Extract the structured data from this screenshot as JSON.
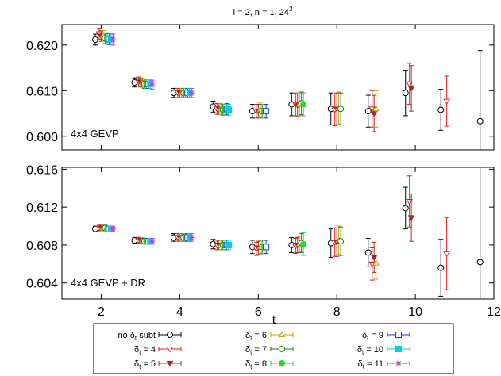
{
  "chart_data": [
    {
      "type": "scatter",
      "panel": "top",
      "title": "l = 2, n = 1, 24",
      "title_sup": "3",
      "label": "4x4 GEVP",
      "xlim": [
        1,
        12
      ],
      "ylim": [
        0.597,
        0.6245
      ],
      "yticks": [
        0.6,
        0.61,
        0.62
      ],
      "ytick_labels": [
        "0.600",
        "0.610",
        "0.620"
      ],
      "grid": false,
      "series": [
        {
          "key": "s0",
          "points": [
            [
              1.85,
              0.6212,
              0.0012
            ],
            [
              2.85,
              0.6118,
              0.001
            ],
            [
              3.85,
              0.6095,
              0.001
            ],
            [
              4.85,
              0.6065,
              0.0012
            ],
            [
              5.85,
              0.6055,
              0.0015
            ],
            [
              6.85,
              0.607,
              0.0025
            ],
            [
              7.85,
              0.606,
              0.0035
            ],
            [
              8.8,
              0.6055,
              0.0035
            ],
            [
              9.75,
              0.6095,
              0.005
            ],
            [
              10.65,
              0.6058,
              0.0045
            ],
            [
              11.65,
              0.6033,
              0.0155
            ]
          ]
        },
        {
          "key": "s4",
          "points": [
            [
              1.95,
              0.6225,
              0.0012
            ],
            [
              2.95,
              0.612,
              0.001
            ],
            [
              3.95,
              0.6095,
              0.001
            ],
            [
              4.95,
              0.606,
              0.0012
            ],
            [
              5.95,
              0.6055,
              0.0015
            ],
            [
              6.95,
              0.607,
              0.0025
            ],
            [
              7.95,
              0.6058,
              0.0035
            ],
            [
              8.9,
              0.606,
              0.004
            ],
            [
              9.85,
              0.6115,
              0.0045
            ],
            [
              10.8,
              0.6077,
              0.0055
            ]
          ]
        },
        {
          "key": "s5",
          "points": [
            [
              2.0,
              0.622,
              0.0012
            ],
            [
              3.0,
              0.6118,
              0.001
            ],
            [
              4.0,
              0.6095,
              0.001
            ],
            [
              5.0,
              0.606,
              0.0012
            ],
            [
              6.0,
              0.6055,
              0.0015
            ],
            [
              7.0,
              0.6068,
              0.0025
            ],
            [
              8.0,
              0.606,
              0.0035
            ],
            [
              8.95,
              0.605,
              0.004
            ],
            [
              9.9,
              0.6105,
              0.005
            ]
          ]
        },
        {
          "key": "s6",
          "points": [
            [
              2.05,
              0.622,
              0.0012
            ],
            [
              3.05,
              0.6117,
              0.001
            ],
            [
              4.05,
              0.6095,
              0.001
            ],
            [
              5.05,
              0.606,
              0.0012
            ],
            [
              6.05,
              0.6058,
              0.0015
            ],
            [
              7.05,
              0.607,
              0.0025
            ],
            [
              8.05,
              0.6062,
              0.0035
            ],
            [
              9.0,
              0.606,
              0.004
            ]
          ]
        },
        {
          "key": "s7",
          "points": [
            [
              2.1,
              0.6215,
              0.0012
            ],
            [
              3.1,
              0.6115,
              0.001
            ],
            [
              4.1,
              0.6095,
              0.001
            ],
            [
              5.1,
              0.6058,
              0.0012
            ],
            [
              6.1,
              0.6055,
              0.0015
            ],
            [
              7.1,
              0.6072,
              0.0025
            ],
            [
              8.1,
              0.606,
              0.0035
            ]
          ]
        },
        {
          "key": "s8",
          "points": [
            [
              2.15,
              0.6215,
              0.0012
            ],
            [
              3.15,
              0.6115,
              0.001
            ],
            [
              4.15,
              0.6095,
              0.001
            ],
            [
              5.15,
              0.6058,
              0.0012
            ],
            [
              6.15,
              0.6055,
              0.0015
            ],
            [
              7.15,
              0.607,
              0.0025
            ]
          ]
        },
        {
          "key": "s9",
          "points": [
            [
              2.2,
              0.6213,
              0.0012
            ],
            [
              3.2,
              0.6115,
              0.001
            ],
            [
              4.2,
              0.6095,
              0.001
            ],
            [
              5.2,
              0.606,
              0.0012
            ],
            [
              6.2,
              0.6055,
              0.0015
            ]
          ]
        },
        {
          "key": "s10",
          "points": [
            [
              2.25,
              0.6213,
              0.0012
            ],
            [
              3.25,
              0.6115,
              0.001
            ],
            [
              4.25,
              0.6095,
              0.001
            ],
            [
              5.25,
              0.6058,
              0.0012
            ]
          ]
        },
        {
          "key": "s11",
          "points": [
            [
              2.3,
              0.6212,
              0.0012
            ],
            [
              3.3,
              0.6113,
              0.001
            ],
            [
              4.3,
              0.6095,
              0.001
            ]
          ]
        }
      ]
    },
    {
      "type": "scatter",
      "panel": "bottom",
      "label": "4x4 GEVP + DR",
      "xlabel": "t",
      "xlim": [
        1,
        12
      ],
      "ylim": [
        0.6023,
        0.6162
      ],
      "xticks": [
        2,
        4,
        6,
        8,
        10,
        12
      ],
      "xtick_labels": [
        "2",
        "4",
        "6",
        "8",
        "10",
        "12"
      ],
      "yticks": [
        0.604,
        0.608,
        0.612,
        0.616
      ],
      "ytick_labels": [
        "0.604",
        "0.608",
        "0.612",
        "0.616"
      ],
      "grid": false,
      "series": [
        {
          "key": "s0",
          "points": [
            [
              1.85,
              0.6097,
              0.0003
            ],
            [
              2.85,
              0.6085,
              0.0003
            ],
            [
              3.85,
              0.6088,
              0.0004
            ],
            [
              4.85,
              0.6081,
              0.0005
            ],
            [
              5.85,
              0.6078,
              0.0007
            ],
            [
              6.85,
              0.608,
              0.0008
            ],
            [
              7.85,
              0.6082,
              0.0015
            ],
            [
              8.8,
              0.6072,
              0.0015
            ],
            [
              9.75,
              0.6119,
              0.0022
            ],
            [
              10.65,
              0.6056,
              0.003
            ],
            [
              11.65,
              0.6062,
              0.01
            ]
          ]
        },
        {
          "key": "s4",
          "points": [
            [
              1.95,
              0.6098,
              0.0003
            ],
            [
              2.95,
              0.6085,
              0.0003
            ],
            [
              3.95,
              0.6088,
              0.0004
            ],
            [
              4.95,
              0.608,
              0.0005
            ],
            [
              5.95,
              0.6076,
              0.0007
            ],
            [
              6.95,
              0.6079,
              0.0008
            ],
            [
              7.95,
              0.6083,
              0.0015
            ],
            [
              8.9,
              0.606,
              0.0017
            ],
            [
              9.85,
              0.6126,
              0.0027
            ],
            [
              10.8,
              0.6071,
              0.0038
            ]
          ]
        },
        {
          "key": "s5",
          "points": [
            [
              2.0,
              0.6098,
              0.0003
            ],
            [
              3.0,
              0.6085,
              0.0003
            ],
            [
              4.0,
              0.6088,
              0.0004
            ],
            [
              5.0,
              0.608,
              0.0005
            ],
            [
              6.0,
              0.6077,
              0.0007
            ],
            [
              7.0,
              0.608,
              0.0008
            ],
            [
              8.0,
              0.6083,
              0.0015
            ],
            [
              8.95,
              0.6067,
              0.0016
            ],
            [
              9.9,
              0.6109,
              0.0025
            ]
          ]
        },
        {
          "key": "s6",
          "points": [
            [
              2.05,
              0.6098,
              0.0003
            ],
            [
              3.05,
              0.6085,
              0.0003
            ],
            [
              4.05,
              0.6088,
              0.0004
            ],
            [
              5.05,
              0.608,
              0.0005
            ],
            [
              6.05,
              0.6078,
              0.0007
            ],
            [
              7.05,
              0.6081,
              0.0008
            ],
            [
              8.05,
              0.6085,
              0.0015
            ],
            [
              9.0,
              0.6061,
              0.0017
            ]
          ]
        },
        {
          "key": "s7",
          "points": [
            [
              2.1,
              0.6098,
              0.0003
            ],
            [
              3.1,
              0.6084,
              0.0003
            ],
            [
              4.1,
              0.6088,
              0.0004
            ],
            [
              5.1,
              0.608,
              0.0005
            ],
            [
              6.1,
              0.6078,
              0.0007
            ],
            [
              7.1,
              0.6082,
              0.001
            ],
            [
              8.1,
              0.6084,
              0.0015
            ]
          ]
        },
        {
          "key": "s8",
          "points": [
            [
              2.15,
              0.6097,
              0.0003
            ],
            [
              3.15,
              0.6084,
              0.0003
            ],
            [
              4.15,
              0.6088,
              0.0004
            ],
            [
              5.15,
              0.608,
              0.0005
            ],
            [
              6.15,
              0.6078,
              0.0007
            ],
            [
              7.15,
              0.6081,
              0.0012
            ]
          ]
        },
        {
          "key": "s9",
          "points": [
            [
              2.2,
              0.6097,
              0.0003
            ],
            [
              3.2,
              0.6084,
              0.0003
            ],
            [
              4.2,
              0.6088,
              0.0004
            ],
            [
              5.2,
              0.608,
              0.0005
            ],
            [
              6.2,
              0.6078,
              0.0007
            ]
          ]
        },
        {
          "key": "s10",
          "points": [
            [
              2.25,
              0.6097,
              0.0003
            ],
            [
              3.25,
              0.6084,
              0.0003
            ],
            [
              4.25,
              0.6088,
              0.0004
            ],
            [
              5.25,
              0.608,
              0.0005
            ]
          ]
        },
        {
          "key": "s11",
          "points": [
            [
              2.3,
              0.6097,
              0.0003
            ],
            [
              3.3,
              0.6084,
              0.0003
            ],
            [
              4.3,
              0.6088,
              0.0004
            ]
          ]
        }
      ]
    }
  ],
  "legend": {
    "placement": "bottom",
    "entries": [
      {
        "key": "s0",
        "text": "no δ",
        "sub": "t",
        "suffix": " subt",
        "color": "#000000",
        "marker": "circle-open"
      },
      {
        "key": "s4",
        "text": "δ",
        "sub": "t",
        "suffix": " = 4",
        "color": "#e31a1c",
        "marker": "tri-down-open"
      },
      {
        "key": "s5",
        "text": "δ",
        "sub": "t",
        "suffix": " = 5",
        "color": "#a52a2a",
        "marker": "tri-down-filled"
      },
      {
        "key": "s6",
        "text": "δ",
        "sub": "t",
        "suffix": " = 6",
        "color": "#c8a000",
        "marker": "tri-up-open"
      },
      {
        "key": "s7",
        "text": "δ",
        "sub": "t",
        "suffix": " = 7",
        "color": "#1b7a1b",
        "marker": "circle-open"
      },
      {
        "key": "s8",
        "text": "δ",
        "sub": "t",
        "suffix": " = 8",
        "color": "#22dd22",
        "marker": "circle-filled"
      },
      {
        "key": "s9",
        "text": "δ",
        "sub": "t",
        "suffix": " = 9",
        "color": "#1f3fcf",
        "marker": "square-open"
      },
      {
        "key": "s10",
        "text": "δ",
        "sub": "t",
        "suffix": " = 10",
        "color": "#00d0e0",
        "marker": "square-filled"
      },
      {
        "key": "s11",
        "text": "δ",
        "sub": "t",
        "suffix": " = 11",
        "color": "#c040e0",
        "marker": "star"
      }
    ]
  }
}
